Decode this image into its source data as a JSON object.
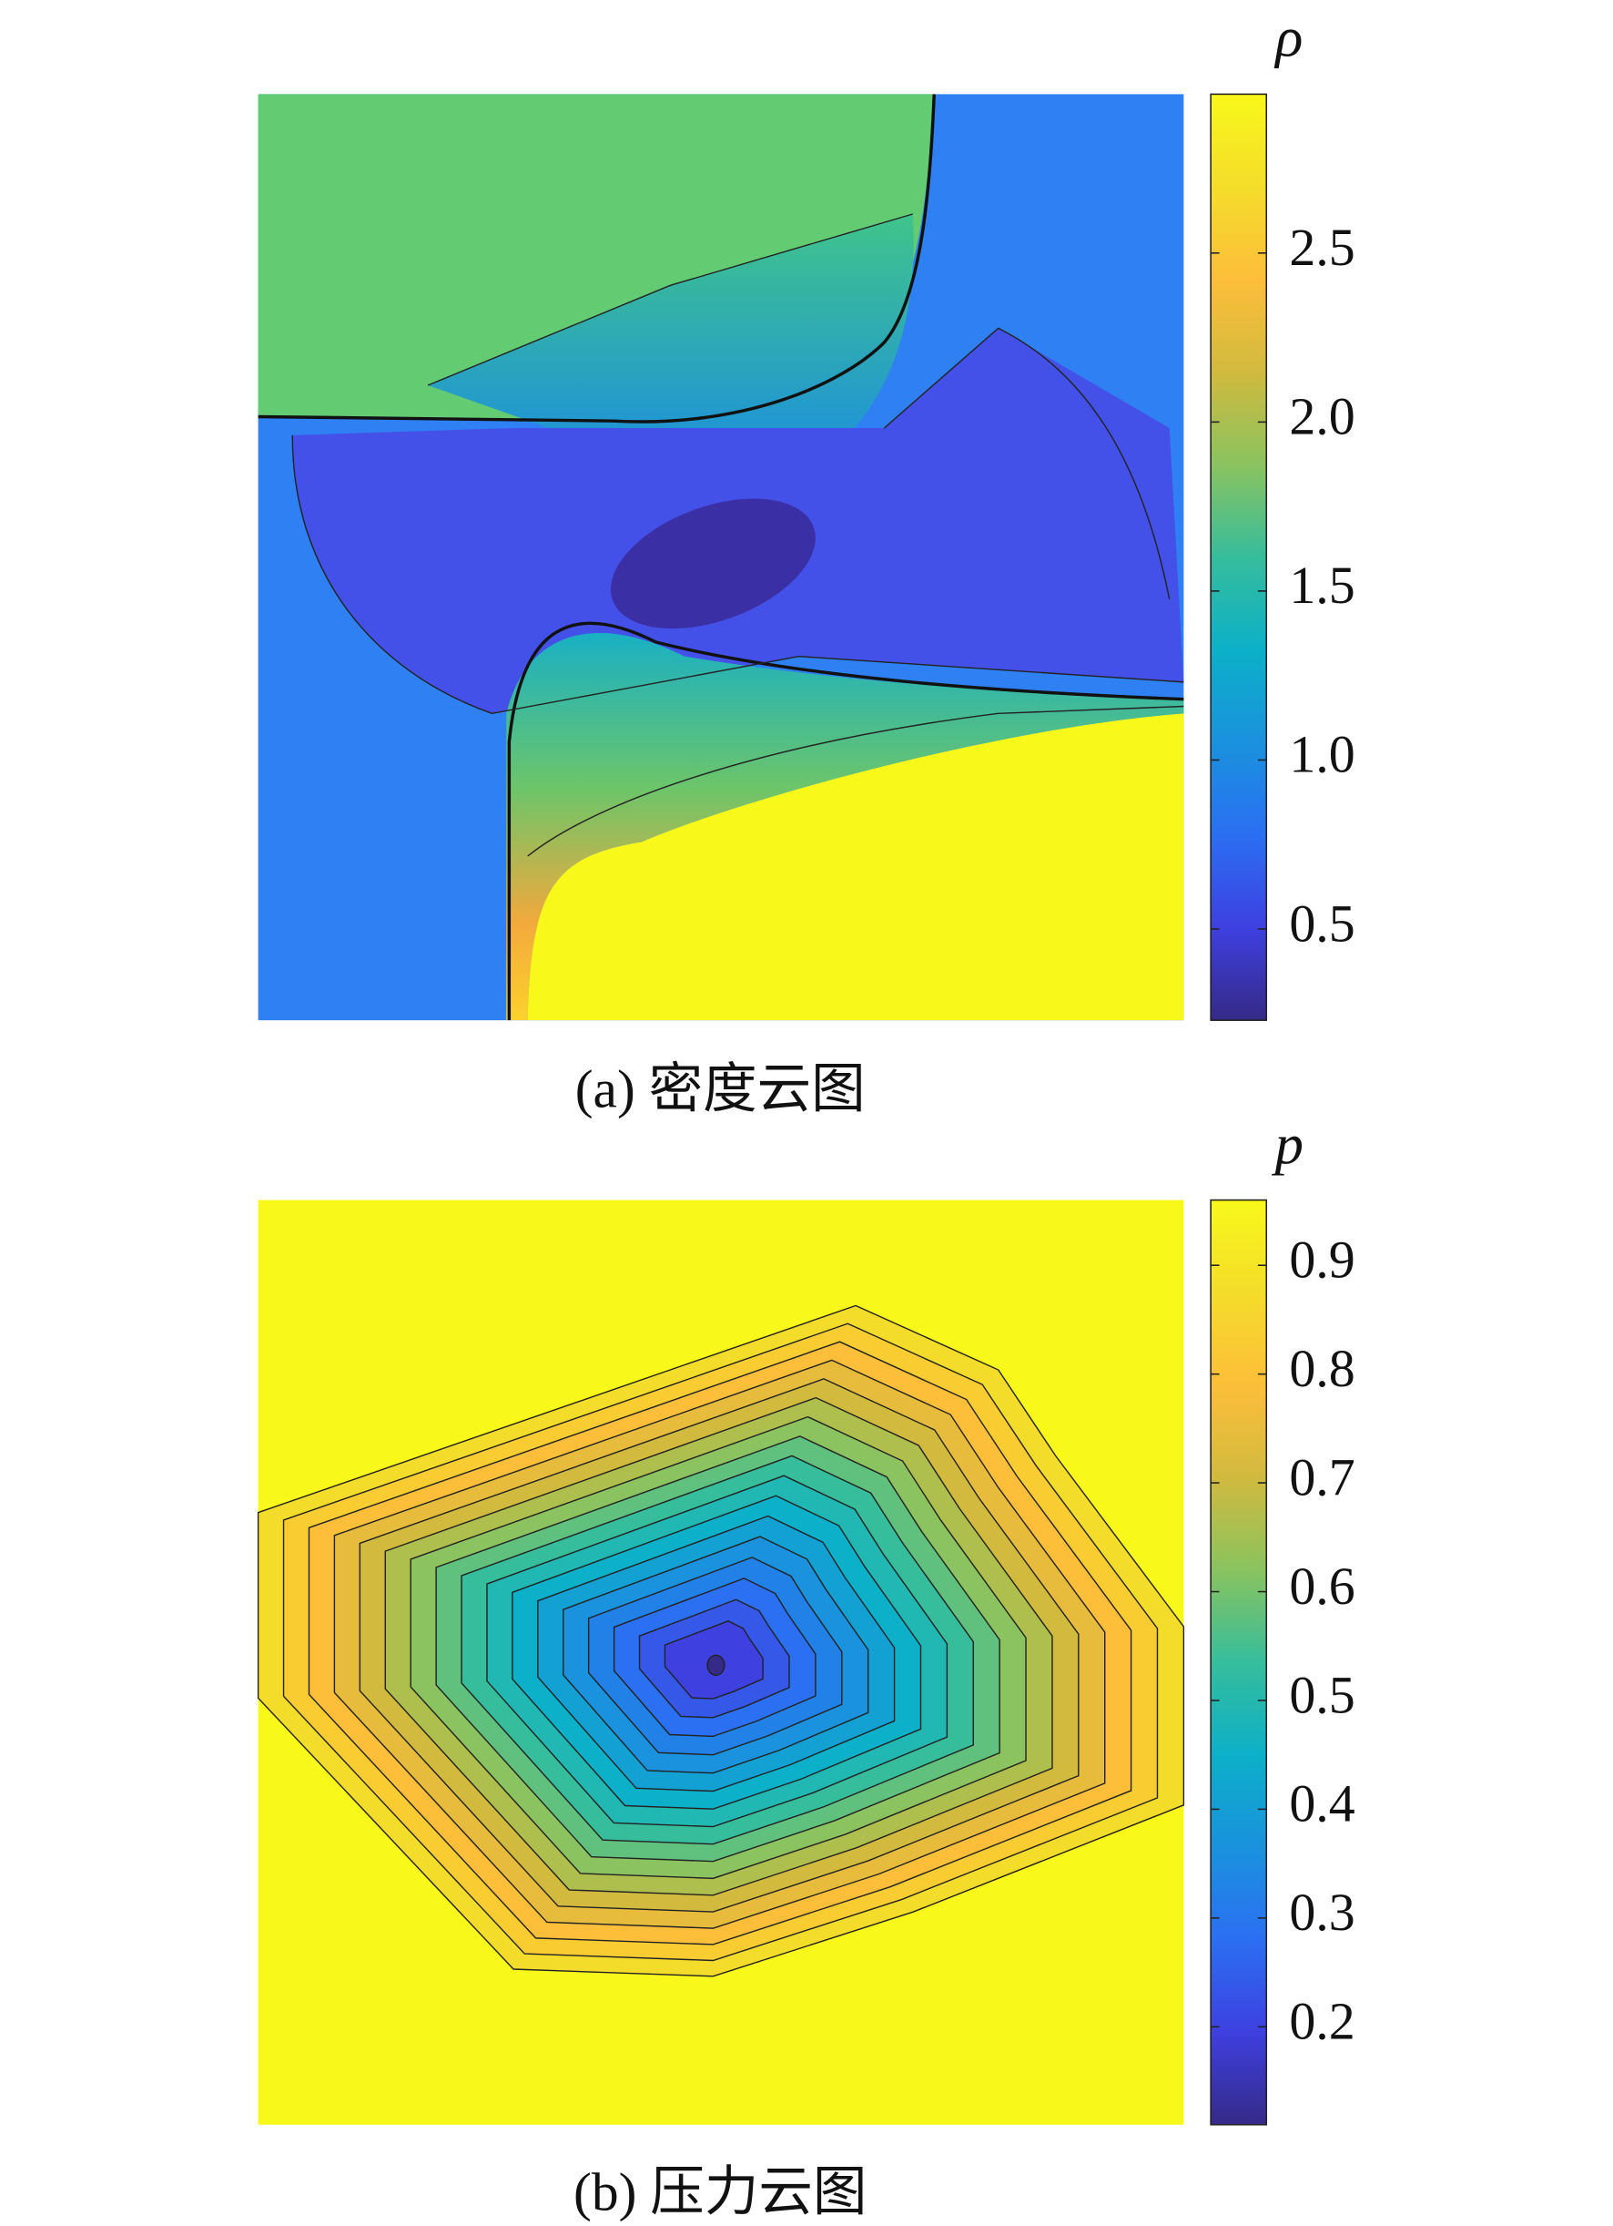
{
  "chart_data": [
    {
      "type": "contour",
      "caption": "(a) 密度云图",
      "colorbar_label": "ρ",
      "zlim": [
        0.23,
        2.97
      ],
      "zticks": [
        0.5,
        {
          "value": 1,
          "label": "1.0"
        },
        1.5,
        {
          "value": 2,
          "label": "2.0"
        },
        2.5
      ]
    },
    {
      "type": "contour",
      "caption": "(b) 压力云图",
      "colorbar_label": "p",
      "zlim": [
        0.11,
        0.96
      ],
      "zticks": [
        0.2,
        0.3,
        0.4,
        0.5,
        0.6,
        0.7,
        0.8,
        0.9
      ]
    }
  ]
}
